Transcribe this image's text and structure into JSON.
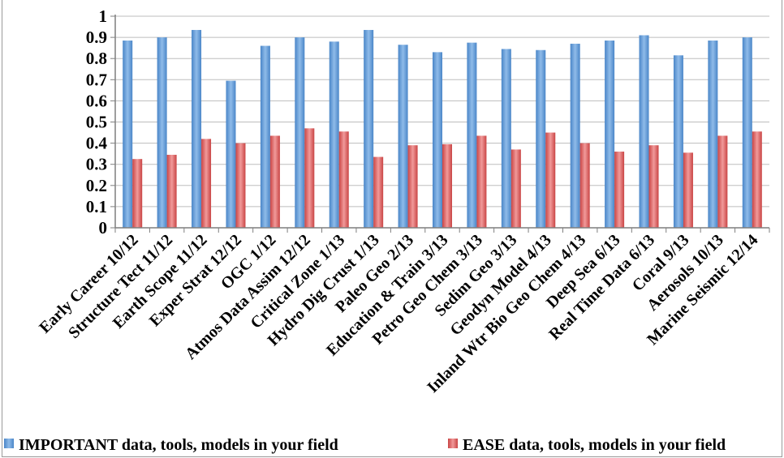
{
  "chart_data": {
    "type": "bar",
    "title": "",
    "xlabel": "",
    "ylabel": "",
    "ylim": [
      0,
      1
    ],
    "yticks": [
      "0",
      "0.1",
      "0.2",
      "0.3",
      "0.4",
      "0.5",
      "0.6",
      "0.7",
      "0.8",
      "0.9",
      "1"
    ],
    "grid": true,
    "legend_position": "bottom",
    "categories": [
      "Early Career 10/12",
      "Structure Tect 11/12",
      "Earth Scope 11/12",
      "Exper Strat 12/12",
      "OGC 1/12",
      "Atmos Data Assim 12/12",
      "Critical Zone 1/13",
      "Hydro Dig Crust 1/13",
      "Paleo Geo 2/13",
      "Education & Train 3/13",
      "Petro Geo Chem 3/13",
      "Sedim Geo 3/13",
      "Geodyn Model 4/13",
      "Inland Wtr Bio Geo Chem 4/13",
      "Deep Sea 6/13",
      "Real Time Data 6/13",
      "Coral 9/13",
      "Aerosols 10/13",
      "Marine Seismic 12/14"
    ],
    "series": [
      {
        "name": "IMPORTANT data, tools, models in your field",
        "color": "#5b9bd5",
        "values": [
          0.885,
          0.9,
          0.935,
          0.695,
          0.86,
          0.9,
          0.88,
          0.935,
          0.865,
          0.83,
          0.875,
          0.845,
          0.84,
          0.87,
          0.885,
          0.91,
          0.815,
          0.885,
          0.9
        ]
      },
      {
        "name": "EASE data, tools, models in your field",
        "color": "#e05a5a",
        "values": [
          0.325,
          0.345,
          0.42,
          0.4,
          0.435,
          0.47,
          0.455,
          0.335,
          0.39,
          0.395,
          0.435,
          0.37,
          0.45,
          0.4,
          0.36,
          0.39,
          0.355,
          0.435,
          0.455
        ]
      }
    ]
  }
}
